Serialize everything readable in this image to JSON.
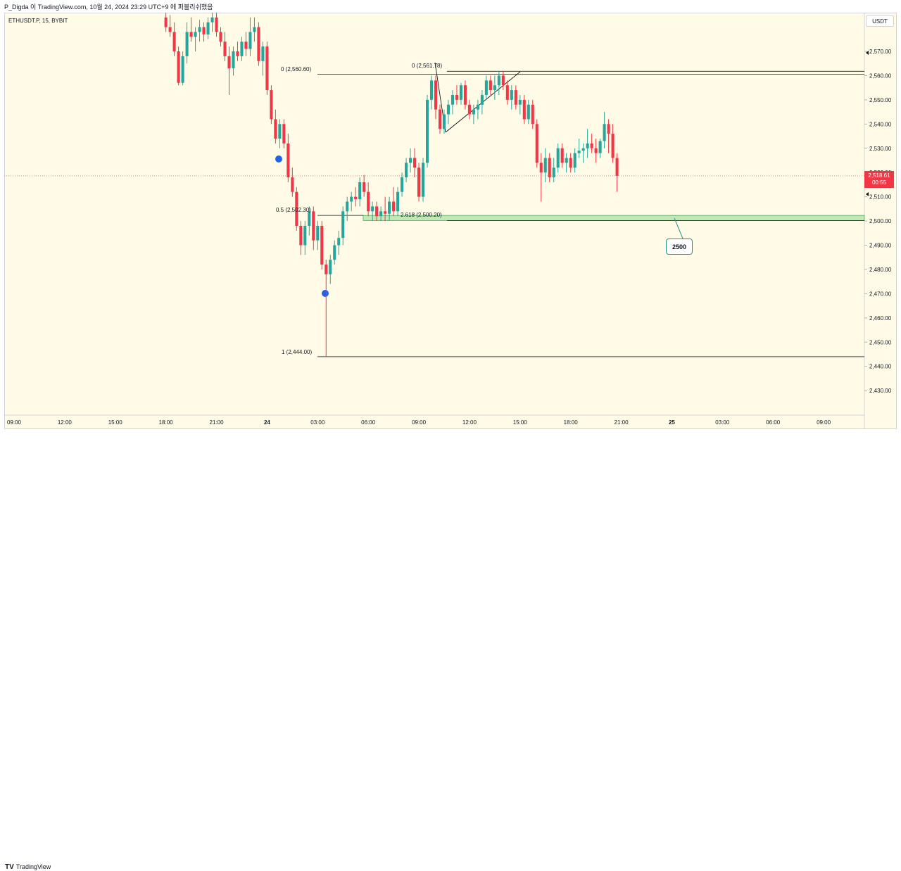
{
  "header": {
    "text": "P_Digda 이 TradingView.com, 10월 24, 2024 23:29 UTC+9 에 퍼블리쉬했음"
  },
  "symbol_label": "ETHUSDT.P, 15, BYBIT",
  "currency_button": "USDT",
  "footer": {
    "brand_mark": "TV",
    "brand": "TradingView"
  },
  "price_tag": {
    "price": "2,518.61",
    "countdown": "00:55"
  },
  "fib_labels": {
    "left_zero": "0 (2,560.60)",
    "left_half": "0.5 (2,502.30)",
    "left_one": "1 (2,444.00)",
    "right_zero": "0 (2,561.78)",
    "right_ext": "2.618 (2,500.20)"
  },
  "callout": {
    "text": "2500"
  },
  "colors": {
    "up": "#26a69a",
    "down": "#f23645",
    "background": "#fffbe6",
    "zone": "#b7e4b0",
    "marker": "#1e63f0"
  },
  "chart_data": {
    "type": "candlestick",
    "symbol": "ETHUSDT.P",
    "timeframe": "15",
    "exchange": "BYBIT",
    "y_axis": {
      "range": [
        2422,
        2582
      ],
      "ticks": [
        2430,
        2440,
        2450,
        2460,
        2470,
        2480,
        2490,
        2500,
        2510,
        2520,
        2530,
        2540,
        2550,
        2560,
        2570
      ],
      "tick_labels": [
        "2,430.00",
        "2,440.00",
        "2,450.00",
        "2,460.00",
        "2,470.00",
        "2,480.00",
        "2,490.00",
        "2,500.00",
        "2,510.00",
        "2,520.00",
        "2,530.00",
        "2,540.00",
        "2,550.00",
        "2,560.00",
        "2,570.00"
      ]
    },
    "x_axis": {
      "tick_labels": [
        "09:00",
        "12:00",
        "15:00",
        "18:00",
        "21:00",
        "24",
        "03:00",
        "06:00",
        "09:00",
        "12:00",
        "15:00",
        "18:00",
        "21:00",
        "25",
        "03:00",
        "06:00",
        "09:00"
      ],
      "tick_hours": [
        9,
        12,
        15,
        18,
        21,
        24,
        27,
        30,
        33,
        36,
        39,
        42,
        45,
        48,
        51,
        54,
        57
      ]
    },
    "candle_hour_start": 18,
    "candle_interval_hours": 0.25,
    "ohlc": [
      [
        2584,
        2588,
        2578,
        2580
      ],
      [
        2580,
        2585,
        2576,
        2578
      ],
      [
        2578,
        2582,
        2568,
        2570
      ],
      [
        2570,
        2572,
        2556,
        2557
      ],
      [
        2557,
        2570,
        2556,
        2568
      ],
      [
        2568,
        2582,
        2565,
        2578
      ],
      [
        2578,
        2584,
        2574,
        2576
      ],
      [
        2576,
        2580,
        2570,
        2578
      ],
      [
        2578,
        2583,
        2574,
        2580
      ],
      [
        2580,
        2582,
        2574,
        2577
      ],
      [
        2577,
        2584,
        2575,
        2582
      ],
      [
        2582,
        2588,
        2578,
        2584
      ],
      [
        2584,
        2586,
        2576,
        2578
      ],
      [
        2578,
        2580,
        2572,
        2574
      ],
      [
        2574,
        2578,
        2566,
        2568
      ],
      [
        2568,
        2572,
        2552,
        2563
      ],
      [
        2563,
        2572,
        2560,
        2570
      ],
      [
        2570,
        2574,
        2566,
        2568
      ],
      [
        2568,
        2576,
        2566,
        2574
      ],
      [
        2574,
        2578,
        2568,
        2571
      ],
      [
        2571,
        2584,
        2568,
        2578
      ],
      [
        2578,
        2584,
        2574,
        2580
      ],
      [
        2580,
        2582,
        2564,
        2566
      ],
      [
        2566,
        2574,
        2560,
        2572
      ],
      [
        2572,
        2574,
        2552,
        2554
      ],
      [
        2554,
        2556,
        2540,
        2542
      ],
      [
        2542,
        2546,
        2532,
        2534
      ],
      [
        2534,
        2542,
        2530,
        2540
      ],
      [
        2540,
        2542,
        2530,
        2532
      ],
      [
        2532,
        2536,
        2516,
        2518
      ],
      [
        2518,
        2522,
        2510,
        2512
      ],
      [
        2512,
        2514,
        2496,
        2498
      ],
      [
        2498,
        2500,
        2486,
        2490
      ],
      [
        2490,
        2500,
        2486,
        2498
      ],
      [
        2498,
        2506,
        2494,
        2504
      ],
      [
        2504,
        2506,
        2488,
        2492
      ],
      [
        2492,
        2500,
        2488,
        2498
      ],
      [
        2498,
        2500,
        2480,
        2482
      ],
      [
        2482,
        2484,
        2444,
        2478
      ],
      [
        2478,
        2486,
        2474,
        2484
      ],
      [
        2484,
        2492,
        2482,
        2490
      ],
      [
        2490,
        2496,
        2486,
        2493
      ],
      [
        2493,
        2506,
        2490,
        2504
      ],
      [
        2504,
        2510,
        2500,
        2508
      ],
      [
        2508,
        2512,
        2504,
        2510
      ],
      [
        2510,
        2514,
        2506,
        2509
      ],
      [
        2509,
        2518,
        2506,
        2516
      ],
      [
        2516,
        2519,
        2510,
        2512
      ],
      [
        2512,
        2516,
        2502,
        2504
      ],
      [
        2504,
        2508,
        2500,
        2506
      ],
      [
        2506,
        2508,
        2500,
        2502
      ],
      [
        2502,
        2506,
        2500,
        2504
      ],
      [
        2504,
        2510,
        2500,
        2503
      ],
      [
        2503,
        2510,
        2500,
        2508
      ],
      [
        2508,
        2514,
        2502,
        2504
      ],
      [
        2504,
        2514,
        2502,
        2512
      ],
      [
        2512,
        2520,
        2510,
        2518
      ],
      [
        2518,
        2526,
        2516,
        2524
      ],
      [
        2524,
        2530,
        2520,
        2526
      ],
      [
        2526,
        2530,
        2518,
        2522
      ],
      [
        2522,
        2524,
        2508,
        2510
      ],
      [
        2510,
        2526,
        2508,
        2524
      ],
      [
        2524,
        2552,
        2522,
        2550
      ],
      [
        2550,
        2560,
        2546,
        2558
      ],
      [
        2558,
        2560,
        2542,
        2546
      ],
      [
        2546,
        2548,
        2536,
        2538
      ],
      [
        2538,
        2546,
        2536,
        2544
      ],
      [
        2544,
        2550,
        2540,
        2548
      ],
      [
        2548,
        2554,
        2544,
        2552
      ],
      [
        2552,
        2556,
        2548,
        2550
      ],
      [
        2550,
        2557,
        2548,
        2556
      ],
      [
        2556,
        2558,
        2546,
        2548
      ],
      [
        2548,
        2550,
        2542,
        2544
      ],
      [
        2544,
        2548,
        2540,
        2546
      ],
      [
        2546,
        2550,
        2542,
        2548
      ],
      [
        2548,
        2554,
        2544,
        2552
      ],
      [
        2552,
        2560,
        2550,
        2558
      ],
      [
        2558,
        2560,
        2552,
        2554
      ],
      [
        2554,
        2560,
        2550,
        2556
      ],
      [
        2556,
        2562,
        2552,
        2560
      ],
      [
        2560,
        2562,
        2554,
        2556
      ],
      [
        2556,
        2558,
        2548,
        2550
      ],
      [
        2550,
        2556,
        2546,
        2554
      ],
      [
        2554,
        2556,
        2546,
        2548
      ],
      [
        2548,
        2552,
        2544,
        2550
      ],
      [
        2550,
        2552,
        2540,
        2542
      ],
      [
        2542,
        2550,
        2540,
        2548
      ],
      [
        2548,
        2550,
        2538,
        2540
      ],
      [
        2540,
        2542,
        2522,
        2524
      ],
      [
        2524,
        2528,
        2508,
        2520
      ],
      [
        2520,
        2530,
        2516,
        2526
      ],
      [
        2526,
        2528,
        2516,
        2518
      ],
      [
        2518,
        2526,
        2516,
        2522
      ],
      [
        2522,
        2532,
        2520,
        2530
      ],
      [
        2530,
        2532,
        2522,
        2524
      ],
      [
        2524,
        2528,
        2520,
        2526
      ],
      [
        2526,
        2528,
        2520,
        2522
      ],
      [
        2522,
        2530,
        2520,
        2528
      ],
      [
        2528,
        2534,
        2526,
        2529
      ],
      [
        2529,
        2532,
        2524,
        2530
      ],
      [
        2530,
        2538,
        2526,
        2532
      ],
      [
        2532,
        2536,
        2528,
        2530
      ],
      [
        2530,
        2534,
        2524,
        2528
      ],
      [
        2528,
        2534,
        2526,
        2533
      ],
      [
        2533,
        2545,
        2530,
        2540
      ],
      [
        2540,
        2542,
        2528,
        2536
      ],
      [
        2536,
        2540,
        2524,
        2526
      ],
      [
        2526,
        2528,
        2512,
        2518.61
      ]
    ],
    "fib_levels": [
      {
        "label": "0 (2,560.60)",
        "price": 2560.6
      },
      {
        "label": "0.5 (2,502.30)",
        "price": 2502.3
      },
      {
        "label": "1 (2,444.00)",
        "price": 2444.0
      },
      {
        "label": "0 (2,561.78)",
        "price": 2561.78
      },
      {
        "label": "2.618 (2,500.20)",
        "price": 2500.2
      }
    ],
    "zone": {
      "top": 2502.3,
      "bottom": 2500.2
    },
    "current_price": 2518.61,
    "annotation": {
      "text": "2500",
      "price": 2500
    }
  }
}
